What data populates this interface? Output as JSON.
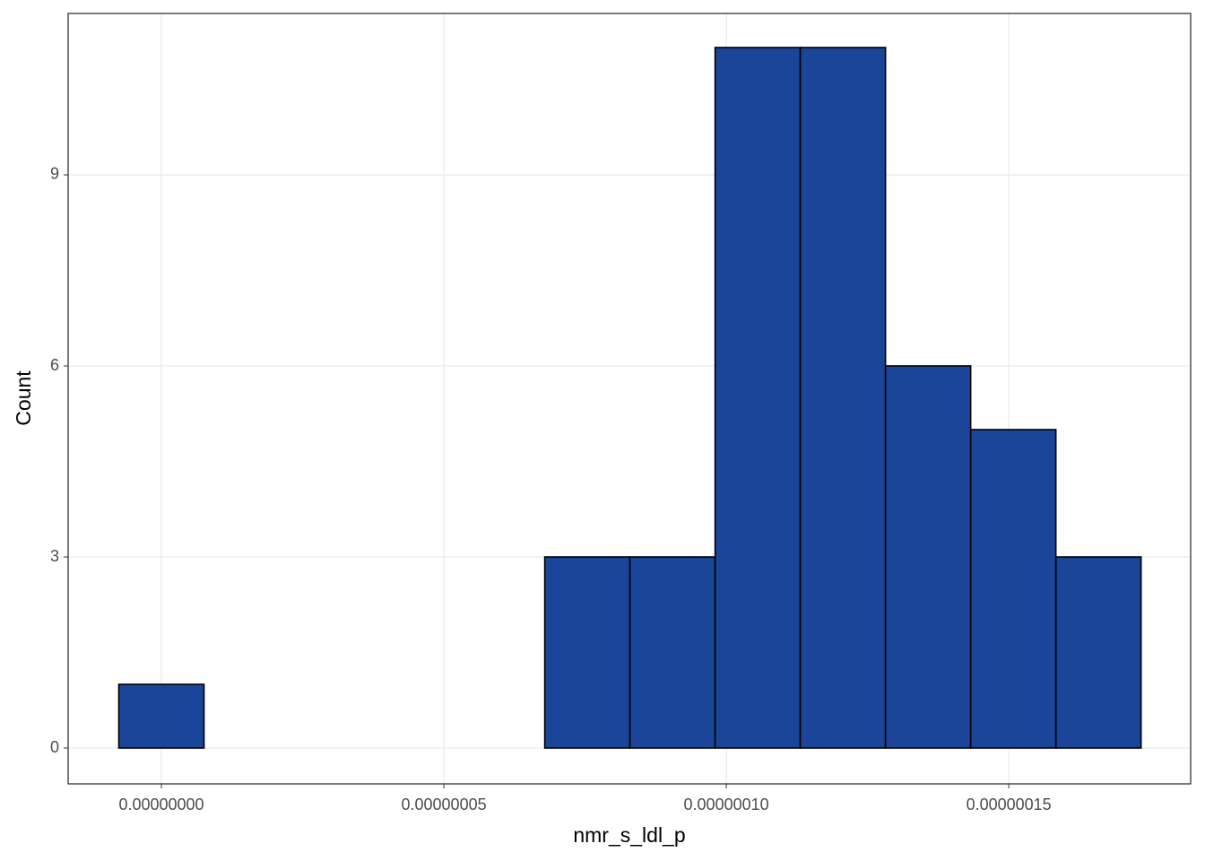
{
  "chart_data": {
    "type": "histogram",
    "x_label": "nmr_s_ldl_p",
    "y_label": "Count",
    "bins": [
      -7.54e-09,
      7.54e-09,
      2.262e-08,
      3.77e-08,
      5.278e-08,
      6.786e-08,
      8.294e-08,
      9.802e-08,
      1.131e-07,
      1.2818e-07,
      1.4326e-07,
      1.5834e-07,
      1.7342e-07
    ],
    "values": [
      1,
      0,
      0,
      0,
      0,
      3,
      3,
      11,
      11,
      6,
      5,
      3
    ],
    "color": "#1a4599",
    "xlim": [
      -1.651e-08,
      1.822e-07
    ],
    "xticks": [
      {
        "value": 0,
        "label": "0.00000000"
      },
      {
        "value": 5e-08,
        "label": "0.00000005"
      },
      {
        "value": 1e-07,
        "label": "0.00000010"
      },
      {
        "value": 1.5e-07,
        "label": "0.00000015"
      }
    ],
    "ylim": [
      -0.563,
      11.535
    ],
    "yticks": [
      0,
      3,
      6,
      9
    ],
    "grid": true
  }
}
